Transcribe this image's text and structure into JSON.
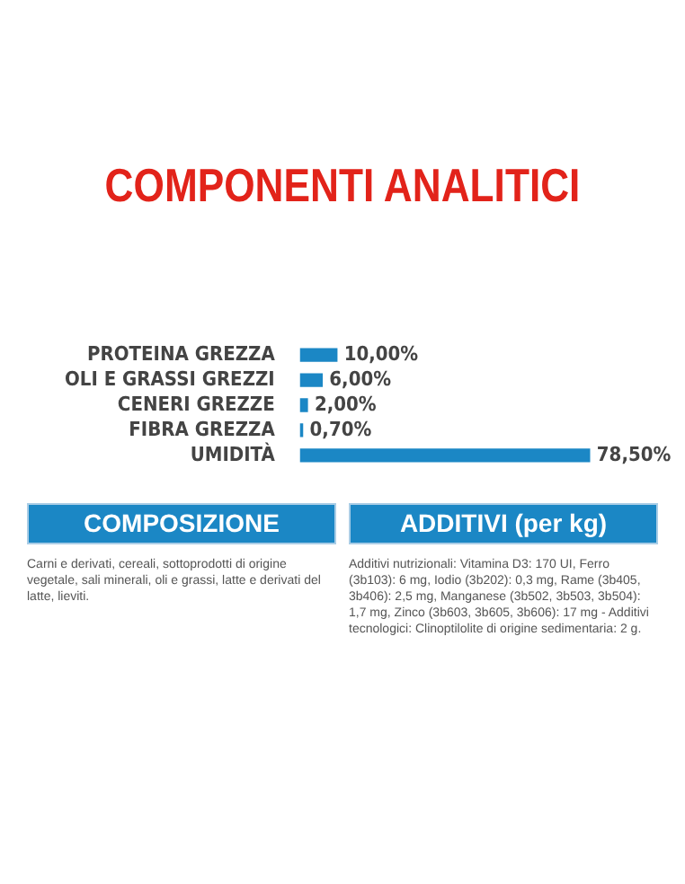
{
  "chart_data": {
    "type": "bar",
    "orientation": "horizontal",
    "title": "COMPONENTI ANALITICI",
    "categories": [
      "PROTEINA GREZZA",
      "OLI E GRASSI GREZZI",
      "CENERI GREZZE",
      "FIBRA GREZZA",
      "UMIDITÀ"
    ],
    "values": [
      10,
      6,
      2,
      0.7,
      78.5
    ],
    "value_labels": [
      "10,00%",
      "6,00%",
      "2,00%",
      "0,70%",
      "78,50%"
    ],
    "color": "#1b87c5",
    "tick_labels": "y",
    "annotations": [
      "COMPOSIZIONE",
      "Carni e derivati, cereali, sottoprodotti di origine vegetale, sali minerali, oli e grassi, latte e derivati del latte, lieviti.",
      "ADDITIVI (per kg)",
      "Additivi nutrizionali: Vitamina D3: 170 UI, Ferro (3b103): 6 mg, Iodio (3b202): 0,3 mg, Rame (3b405, 3b406): 2,5 mg, Manganese (3b502, 3b503, 3b504): 1,7 mg, Zinco (3b603, 3b605, 3b606): 17 mg - Additivi tecnologici: Clinoptilolite di origine sedimentaria: 2 g."
    ]
  }
}
